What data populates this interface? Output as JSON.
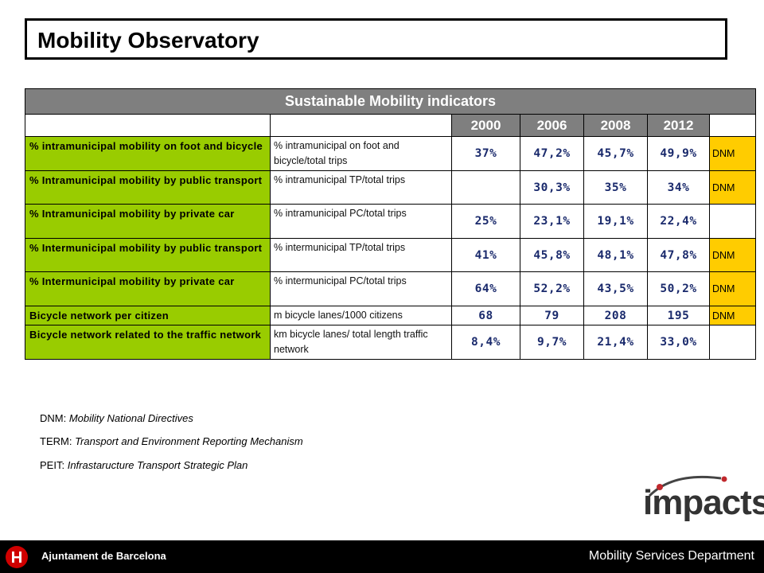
{
  "header": {
    "title": "Mobility Observatory"
  },
  "table": {
    "title": "Sustainable Mobility indicators",
    "years": [
      "2000",
      "2006",
      "2008",
      "2012"
    ],
    "rows": [
      {
        "indicator": "% intramunicipal mobility on foot and bicycle",
        "unit": "% intramunicipal on foot and bicycle/total trips",
        "values": [
          "37%",
          "47,2%",
          "45,7%",
          "49,9%"
        ],
        "ref": "DNM"
      },
      {
        "indicator": "% Intramunicipal mobility by public transport",
        "unit": "% intramunicipal TP/total trips",
        "values": [
          "",
          "30,3%",
          "35%",
          "34%"
        ],
        "ref": "DNM"
      },
      {
        "indicator": "% Intramunicipal mobility by private car",
        "unit": "% intramunicipal PC/total trips",
        "values": [
          "25%",
          "23,1%",
          "19,1%",
          "22,4%"
        ],
        "ref": ""
      },
      {
        "indicator": "% Intermunicipal mobility by public transport",
        "unit": "% intermunicipal TP/total trips",
        "values": [
          "41%",
          "45,8%",
          "48,1%",
          "47,8%"
        ],
        "ref": "DNM"
      },
      {
        "indicator": "% Intermunicipal mobility by private car",
        "unit": "% intermunicipal PC/total trips",
        "values": [
          "64%",
          "52,2%",
          "43,5%",
          "50,2%"
        ],
        "ref": "DNM"
      },
      {
        "indicator": "Bicycle network per citizen",
        "unit": "m bicycle lanes/1000 citizens",
        "values": [
          "68",
          "79",
          "208",
          "195"
        ],
        "ref": "DNM"
      },
      {
        "indicator": "Bicycle network related to the traffic network",
        "unit": "km bicycle lanes/ total length traffic network",
        "values": [
          "8,4%",
          "9,7%",
          "21,4%",
          "33,0%"
        ],
        "ref": ""
      }
    ]
  },
  "legend": [
    {
      "abbr": "DNM:",
      "desc": "Mobility National Directives"
    },
    {
      "abbr": "TERM:",
      "desc": "Transport and Environment Reporting Mechanism"
    },
    {
      "abbr": "PEIT:",
      "desc": "Infrastaructure Transport Strategic Plan"
    }
  ],
  "logo": {
    "text": "impacts"
  },
  "footer": {
    "city": "Ajuntament de Barcelona",
    "department": "Mobility Services Department"
  },
  "colors": {
    "indicator_bg": "#99cc00",
    "dnm_bg": "#ffcc00",
    "header_bg": "#7f7f7f",
    "value_text": "#1a2a6c"
  }
}
